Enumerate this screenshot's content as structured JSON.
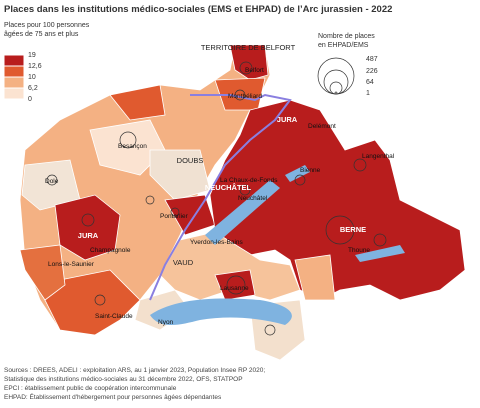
{
  "title": "Places dans les institutions médico-sociales (EMS et EHPAD) de l’Arc jurassien - 2022",
  "legend_fill": {
    "title": [
      "Places pour 100 personnes",
      "âgées de 75 ans et plus"
    ],
    "breaks": [
      "19",
      "12,6",
      "10",
      "6,2",
      "0"
    ]
  },
  "legend_size": {
    "title": [
      "Nombre de places",
      "en EHPAD/EMS"
    ],
    "values": [
      "487",
      "226",
      "64",
      "1"
    ]
  },
  "regions": [
    "TERRITOIRE DE BELFORT",
    "DOUBS",
    "JURA",
    "JURA",
    "NEUCHÂTEL",
    "VAUD",
    "BERNE"
  ],
  "cities": [
    "Belfort",
    "Montbéliard",
    "Delémont",
    "Besançon",
    "Dole",
    "La Chaux-de-Fonds",
    "Neuchâtel",
    "Bienne",
    "Pontarlier",
    "Champagnole",
    "Lons-le-Saunier",
    "Yverdon-les-Bains",
    "Lausanne",
    "Saint-Claude",
    "Nyon",
    "Langenthal",
    "Thoune"
  ],
  "sources": [
    "Sources : DREES, ADELI : exploitation ARS, au 1 janvier 2023, Population Insee RP 2020;",
    "Statistique des institutions médico-sociales au 31 décembre 2022, OFS, STATPOP",
    "EPCI : établissement public de coopération intercommunale",
    "EHPAD: Établissement d'hébergement pour personnes âgées dépendantes"
  ]
}
